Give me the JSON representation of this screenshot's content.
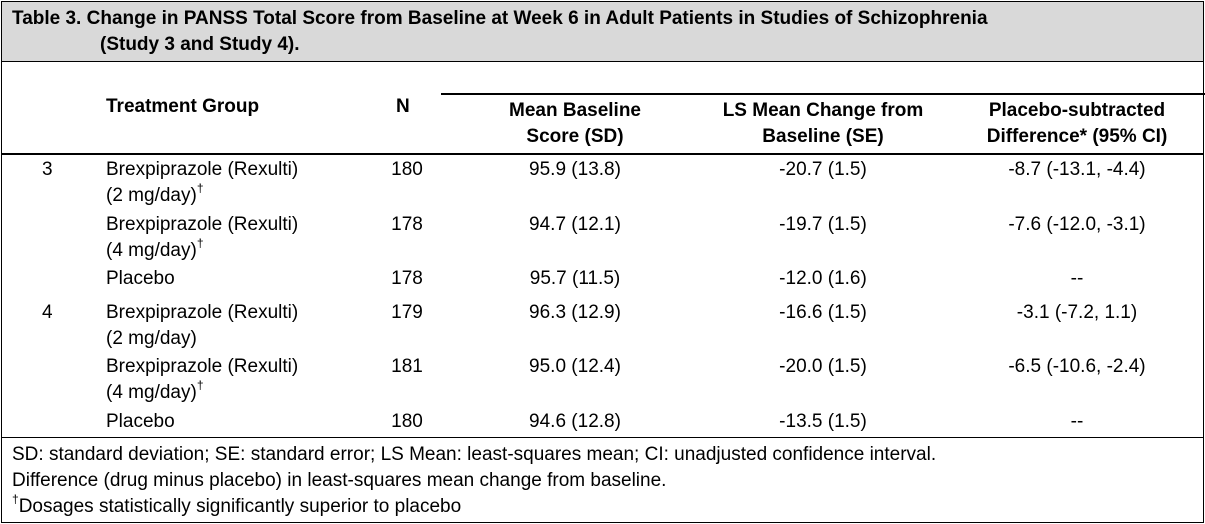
{
  "title": {
    "line1": "Table 3. Change in PANSS Total Score from Baseline at Week 6 in Adult Patients in Studies of Schizophrenia",
    "line2": "(Study 3 and Study 4)."
  },
  "headers": {
    "treatment_group": "Treatment Group",
    "n": "N",
    "mean_baseline_l1": "Mean Baseline",
    "mean_baseline_l2": "Score (SD)",
    "ls_mean_l1": "LS Mean Change from",
    "ls_mean_l2": "Baseline (SE)",
    "placebo_diff_l1": "Placebo-subtracted",
    "placebo_diff_l2": "Difference* (95% CI)"
  },
  "rows": [
    {
      "study": "3",
      "group_l1": "Brexpiprazole (Rexulti)",
      "group_l2": "(2 mg/day)",
      "dagger": "†",
      "n": "180",
      "baseline": "95.9 (13.8)",
      "ls_change": "-20.7 (1.5)",
      "diff": "-8.7 (-13.1, -4.4)"
    },
    {
      "study": "",
      "group_l1": "Brexpiprazole (Rexulti)",
      "group_l2": "(4 mg/day)",
      "dagger": "†",
      "n": "178",
      "baseline": "94.7 (12.1)",
      "ls_change": "-19.7 (1.5)",
      "diff": "-7.6 (-12.0, -3.1)"
    },
    {
      "study": "",
      "group_l1": "Placebo",
      "group_l2": "",
      "dagger": "",
      "n": "178",
      "baseline": "95.7 (11.5)",
      "ls_change": "-12.0 (1.6)",
      "diff": "--"
    },
    {
      "study": "4",
      "group_l1": "Brexpiprazole (Rexulti)",
      "group_l2": "(2 mg/day)",
      "dagger": "",
      "n": "179",
      "baseline": "96.3 (12.9)",
      "ls_change": "-16.6 (1.5)",
      "diff": "-3.1 (-7.2, 1.1)"
    },
    {
      "study": "",
      "group_l1": "Brexpiprazole (Rexulti)",
      "group_l2": "(4 mg/day)",
      "dagger": "†",
      "n": "181",
      "baseline": "95.0 (12.4)",
      "ls_change": "-20.0 (1.5)",
      "diff": "-6.5 (-10.6, -2.4)"
    },
    {
      "study": "",
      "group_l1": "Placebo",
      "group_l2": "",
      "dagger": "",
      "n": "180",
      "baseline": "94.6 (12.8)",
      "ls_change": "-13.5 (1.5)",
      "diff": "--"
    }
  ],
  "footnotes": {
    "line1": "SD: standard deviation; SE: standard error; LS Mean: least-squares mean; CI: unadjusted confidence interval.",
    "line2": "Difference (drug minus placebo) in least-squares mean change from baseline.",
    "line3_mark": "†",
    "line3": "Dosages statistically significantly superior to placebo"
  }
}
